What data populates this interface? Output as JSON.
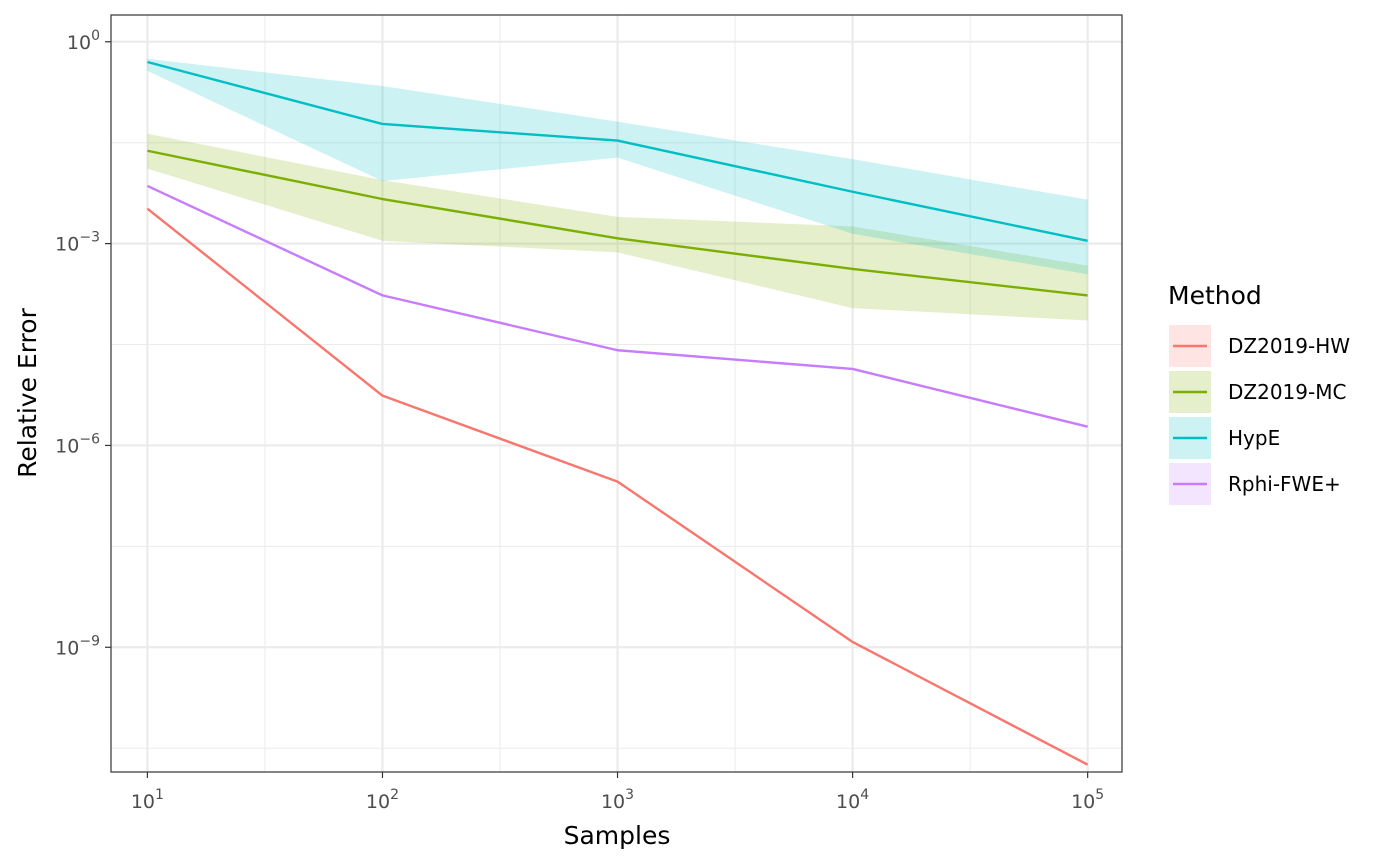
{
  "chart_data": {
    "type": "line",
    "xlabel": "Samples",
    "ylabel": "Relative Error",
    "x_scale": "log10",
    "y_scale": "log10",
    "xlim": [
      7.0,
      140000
    ],
    "ylim": [
      1.4e-11,
      2.5
    ],
    "grid": true,
    "x_ticks": [
      {
        "value": 10,
        "base": "10",
        "exp": "1"
      },
      {
        "value": 100,
        "base": "10",
        "exp": "2"
      },
      {
        "value": 1000,
        "base": "10",
        "exp": "3"
      },
      {
        "value": 10000,
        "base": "10",
        "exp": "4"
      },
      {
        "value": 100000,
        "base": "10",
        "exp": "5"
      }
    ],
    "y_ticks": [
      {
        "value": 1,
        "base": "10",
        "exp": "0"
      },
      {
        "value": 0.001,
        "base": "10",
        "exp": "−3"
      },
      {
        "value": 1e-06,
        "base": "10",
        "exp": "−6"
      },
      {
        "value": 1e-09,
        "base": "10",
        "exp": "−9"
      }
    ],
    "x": [
      10,
      100,
      1000,
      10000,
      100000
    ],
    "legend": {
      "title": "Method",
      "position": "right"
    },
    "series": [
      {
        "name": "DZ2019-HW",
        "color": "#F8766D",
        "values": [
          0.0033,
          5.5e-06,
          2.9e-07,
          1.2e-09,
          1.8e-11
        ],
        "ribbon": null
      },
      {
        "name": "DZ2019-MC",
        "color": "#7CAE00",
        "values": [
          0.024,
          0.0046,
          0.0012,
          0.00042,
          0.00017
        ],
        "ribbon": {
          "lower": [
            0.013,
            0.0011,
            0.00074,
            0.00011,
            7.2e-05
          ],
          "upper": [
            0.043,
            0.0088,
            0.0025,
            0.0018,
            0.00047
          ]
        }
      },
      {
        "name": "HypE",
        "color": "#00BFC4",
        "values": [
          0.5,
          0.06,
          0.034,
          0.0059,
          0.0011
        ],
        "ribbon": {
          "lower": [
            0.37,
            0.0085,
            0.019,
            0.0014,
            0.00035
          ],
          "upper": [
            0.56,
            0.22,
            0.065,
            0.018,
            0.0045
          ]
        }
      },
      {
        "name": "Rphi-FWE+",
        "color": "#C77CFF",
        "values": [
          0.0072,
          0.00017,
          2.6e-05,
          1.37e-05,
          1.9e-06
        ],
        "ribbon": null
      }
    ]
  }
}
